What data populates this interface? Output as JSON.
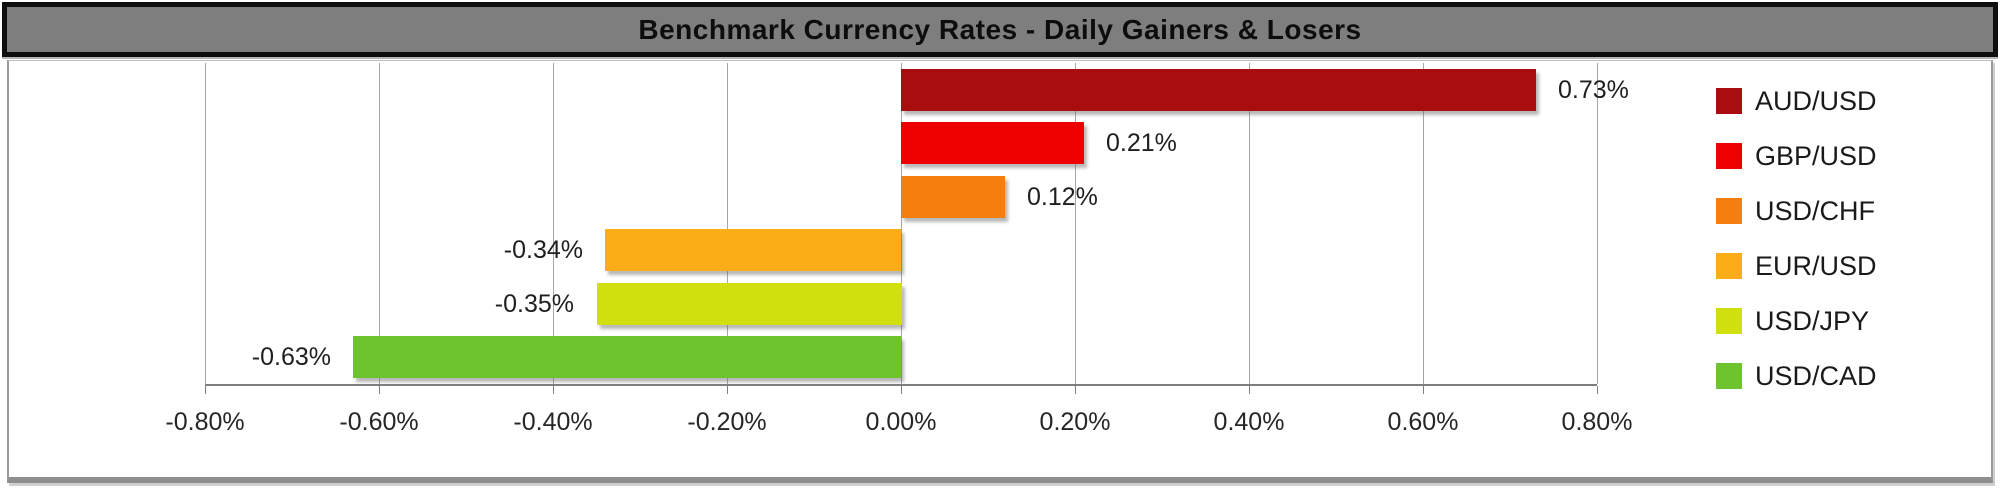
{
  "title": "Benchmark Currency Rates - Daily Gainers & Losers",
  "colors": {
    "banner_bg": "#7e7e7e",
    "banner_border": "#0e0e0e",
    "grid_line": "#a6a6a6",
    "axis_line": "#7f7f7f",
    "label_text": "#1f1f1f"
  },
  "chart_data": {
    "type": "bar",
    "orientation": "horizontal",
    "title": "Benchmark Currency Rates - Daily Gainers & Losers",
    "categories": [
      "AUD/USD",
      "GBP/USD",
      "USD/CHF",
      "EUR/USD",
      "USD/JPY",
      "USD/CAD"
    ],
    "values": [
      0.73,
      0.21,
      0.12,
      -0.34,
      -0.35,
      -0.63
    ],
    "data_labels": [
      "0.73%",
      "0.21%",
      "0.12%",
      "-0.34%",
      "-0.35%",
      "-0.63%"
    ],
    "bar_colors": [
      "#a90d0f",
      "#ee0000",
      "#f57e0e",
      "#fbad18",
      "#d0df0e",
      "#6dc42f"
    ],
    "x_tick_labels": [
      "-0.80%",
      "-0.60%",
      "-0.40%",
      "-0.20%",
      "0.00%",
      "0.20%",
      "0.40%",
      "0.60%",
      "0.80%"
    ],
    "xlim": [
      -0.8,
      0.8
    ],
    "xlabel": "",
    "ylabel": "",
    "grid": "vertical",
    "legend_position": "right",
    "legend": [
      {
        "label": "AUD/USD",
        "color": "#a90d0f"
      },
      {
        "label": "GBP/USD",
        "color": "#ee0000"
      },
      {
        "label": "USD/CHF",
        "color": "#f57e0e"
      },
      {
        "label": "EUR/USD",
        "color": "#fbad18"
      },
      {
        "label": "USD/JPY",
        "color": "#d0df0e"
      },
      {
        "label": "USD/CAD",
        "color": "#6dc42f"
      }
    ]
  }
}
